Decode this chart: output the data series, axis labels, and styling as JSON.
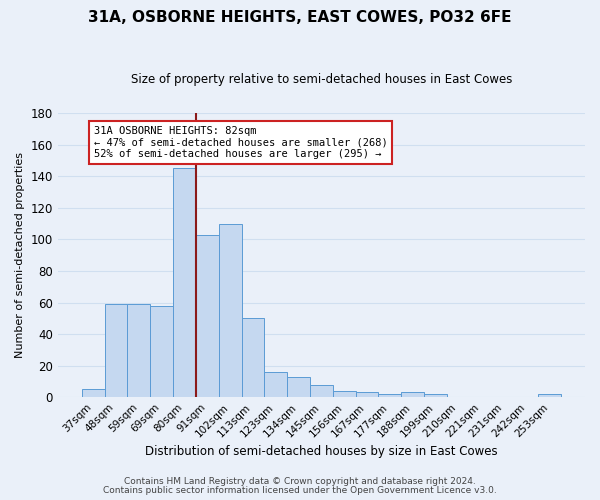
{
  "title": "31A, OSBORNE HEIGHTS, EAST COWES, PO32 6FE",
  "subtitle": "Size of property relative to semi-detached houses in East Cowes",
  "xlabel": "Distribution of semi-detached houses by size in East Cowes",
  "ylabel_text": "Number of semi-detached properties",
  "categories": [
    "37sqm",
    "48sqm",
    "59sqm",
    "69sqm",
    "80sqm",
    "91sqm",
    "102sqm",
    "113sqm",
    "123sqm",
    "134sqm",
    "145sqm",
    "156sqm",
    "167sqm",
    "177sqm",
    "188sqm",
    "199sqm",
    "210sqm",
    "221sqm",
    "231sqm",
    "242sqm",
    "253sqm"
  ],
  "values": [
    5,
    59,
    59,
    58,
    145,
    103,
    110,
    50,
    16,
    13,
    8,
    4,
    3,
    2,
    3,
    2,
    0,
    0,
    0,
    0,
    2
  ],
  "bar_color": "#c5d8f0",
  "bar_edge_color": "#5b9bd5",
  "background_color": "#eaf0f9",
  "grid_color": "#d0dff0",
  "marker_color": "#8b1a1a",
  "annotation_line1": "31A OSBORNE HEIGHTS: 82sqm",
  "annotation_line2": "← 47% of semi-detached houses are smaller (268)",
  "annotation_line3": "52% of semi-detached houses are larger (295) →",
  "annotation_box_facecolor": "#ffffff",
  "annotation_box_edgecolor": "#cc2222",
  "ylim": [
    0,
    180
  ],
  "yticks": [
    0,
    20,
    40,
    60,
    80,
    100,
    120,
    140,
    160,
    180
  ],
  "footnote1": "Contains HM Land Registry data © Crown copyright and database right 2024.",
  "footnote2": "Contains public sector information licensed under the Open Government Licence v3.0."
}
